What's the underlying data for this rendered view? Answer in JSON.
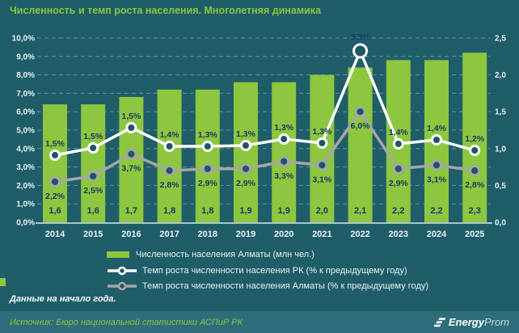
{
  "page": {
    "title": "Численность и темп роста населения. Многолетняя динамика",
    "note": "Данные на начало года.",
    "footer": {
      "source": "Источник: Бюро национальной статистики АСПиР РК",
      "logo_bold": "Energy",
      "logo_light": "Prom"
    }
  },
  "colors": {
    "background": "#1F5D69",
    "footer_bg": "#2E6E7A",
    "bar": "#8DC63F",
    "title_green": "#8CC63E",
    "label_dark": "#17375E",
    "line_rk": "#FFFFFF",
    "line_almaty": "#A6A6A6",
    "marker_fill": "#1D5664",
    "axis_text": "#E9F2F4"
  },
  "chart_data": {
    "type": "combo-bar-line",
    "categories": [
      "2014",
      "2015",
      "2016",
      "2017",
      "2018",
      "2019",
      "2020",
      "2021",
      "2022",
      "2023",
      "2024",
      "2025"
    ],
    "bar_series": {
      "name": "Численность населения Алматы (млн чел.)",
      "axis": "right",
      "values": [
        1.6,
        1.6,
        1.7,
        1.8,
        1.8,
        1.9,
        1.9,
        2.0,
        2.1,
        2.2,
        2.2,
        2.3
      ],
      "labels": [
        "1,6",
        "1,6",
        "1,7",
        "1,8",
        "1,8",
        "1,9",
        "1,9",
        "2,0",
        "2,1",
        "2,2",
        "2,2",
        "2,3"
      ]
    },
    "line_series": [
      {
        "id": "rk",
        "name": "Темп роста численности населения РК (% к предыдущему году)",
        "values": [
          1.5,
          1.5,
          1.5,
          1.4,
          1.3,
          1.3,
          1.3,
          1.3,
          3.3,
          1.4,
          1.4,
          1.2
        ],
        "labels": [
          "1,5%",
          "1,5%",
          "1,5%",
          "1,4%",
          "1,3%",
          "1,3%",
          "1,3%",
          "1,3%",
          "3,3%",
          "1,4%",
          "1,4%",
          "1,2%"
        ]
      },
      {
        "id": "almaty",
        "name": "Темп роста численности населения Алматы (% к предыдущему году)",
        "values": [
          2.2,
          2.5,
          3.7,
          2.8,
          2.9,
          2.9,
          3.3,
          3.1,
          6.0,
          2.9,
          3.1,
          2.8
        ],
        "labels": [
          "2,2%",
          "2,5%",
          "3,7%",
          "2,8%",
          "2,9%",
          "2,9%",
          "3,3%",
          "3,1%",
          "6,0%",
          "2,9%",
          "3,1%",
          "2,8%"
        ]
      }
    ],
    "axes": {
      "left": {
        "min": 0,
        "max": 10,
        "ticks": [
          "0,0%",
          "1,0%",
          "2,0%",
          "3,0%",
          "4,0%",
          "5,0%",
          "6,0%",
          "7,0%",
          "8,0%",
          "9,0%",
          "10,0%"
        ]
      },
      "right": {
        "min": 0,
        "max": 2.5,
        "ticks": [
          "0,0",
          "0,5",
          "1,0",
          "1,5",
          "2,0",
          "2,5"
        ]
      }
    },
    "legend": [
      "Численность населения Алматы (млн чел.)",
      "Темп роста численности населения РК (% к предыдущему году)",
      "Темп роста численности населения Алматы (% к предыдущему году)"
    ],
    "grid": "dashed horizontal",
    "legend_position": "bottom"
  }
}
